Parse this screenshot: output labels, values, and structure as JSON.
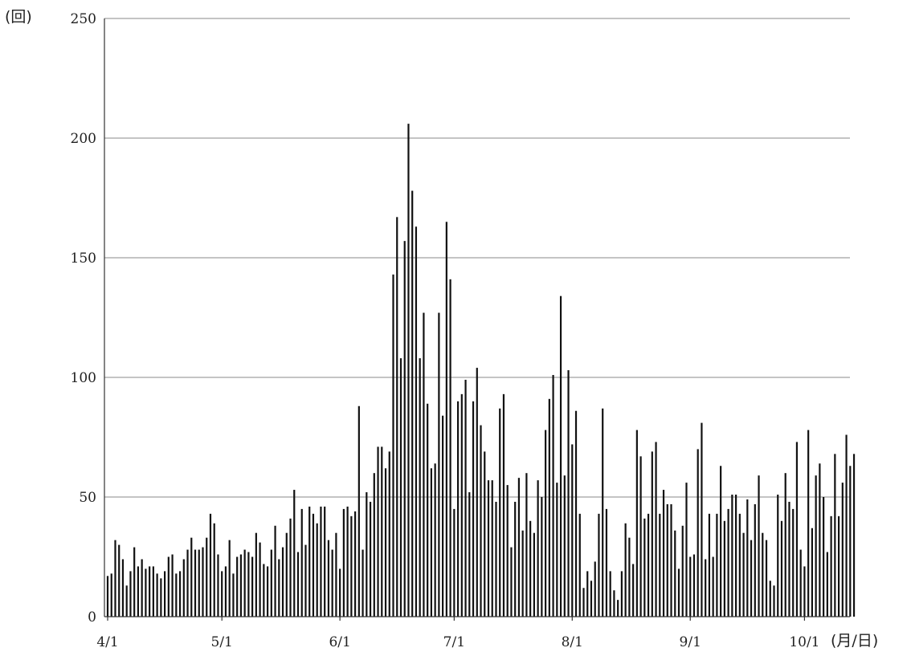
{
  "chart_data": {
    "type": "bar",
    "title": "",
    "y_unit": "(回)",
    "x_unit": "(月/日)",
    "ylim": [
      0,
      250
    ],
    "y_ticks": [
      0,
      50,
      100,
      150,
      200,
      250
    ],
    "grid": true,
    "x_ticks": [
      "4/1",
      "5/1",
      "6/1",
      "7/1",
      "8/1",
      "9/1",
      "10/1"
    ],
    "x_tick_day_index": [
      0,
      30,
      61,
      91,
      122,
      153,
      183
    ],
    "x_start": "4/1",
    "values": [
      17,
      18,
      32,
      30,
      24,
      13,
      19,
      29,
      21,
      24,
      20,
      21,
      21,
      18,
      16,
      19,
      25,
      26,
      18,
      19,
      24,
      28,
      33,
      28,
      28,
      29,
      33,
      43,
      39,
      26,
      19,
      21,
      32,
      18,
      25,
      26,
      28,
      27,
      25,
      35,
      31,
      22,
      21,
      28,
      38,
      24,
      29,
      35,
      41,
      53,
      27,
      45,
      30,
      46,
      43,
      39,
      46,
      46,
      32,
      28,
      35,
      20,
      45,
      46,
      42,
      44,
      88,
      28,
      52,
      48,
      60,
      71,
      71,
      62,
      69,
      143,
      167,
      108,
      157,
      206,
      178,
      163,
      108,
      127,
      89,
      62,
      64,
      127,
      84,
      165,
      141,
      45,
      90,
      93,
      99,
      52,
      90,
      104,
      80,
      69,
      57,
      57,
      48,
      87,
      93,
      55,
      29,
      48,
      58,
      36,
      60,
      40,
      35,
      57,
      50,
      78,
      91,
      101,
      56,
      134,
      59,
      103,
      72,
      86,
      43,
      12,
      19,
      15,
      23,
      43,
      87,
      45,
      19,
      11,
      7,
      19,
      39,
      33,
      22,
      78,
      67,
      41,
      43,
      69,
      73,
      43,
      53,
      47,
      47,
      36,
      20,
      38,
      56,
      25,
      26,
      70,
      81,
      24,
      43,
      25,
      43,
      63,
      40,
      45,
      51,
      51,
      43,
      35,
      49,
      32,
      47,
      59,
      35,
      32,
      15,
      13,
      51,
      40,
      60,
      48,
      45,
      73,
      28,
      21,
      78,
      37,
      59,
      64,
      50,
      27,
      42,
      68,
      42,
      56,
      76,
      63,
      68
    ]
  }
}
